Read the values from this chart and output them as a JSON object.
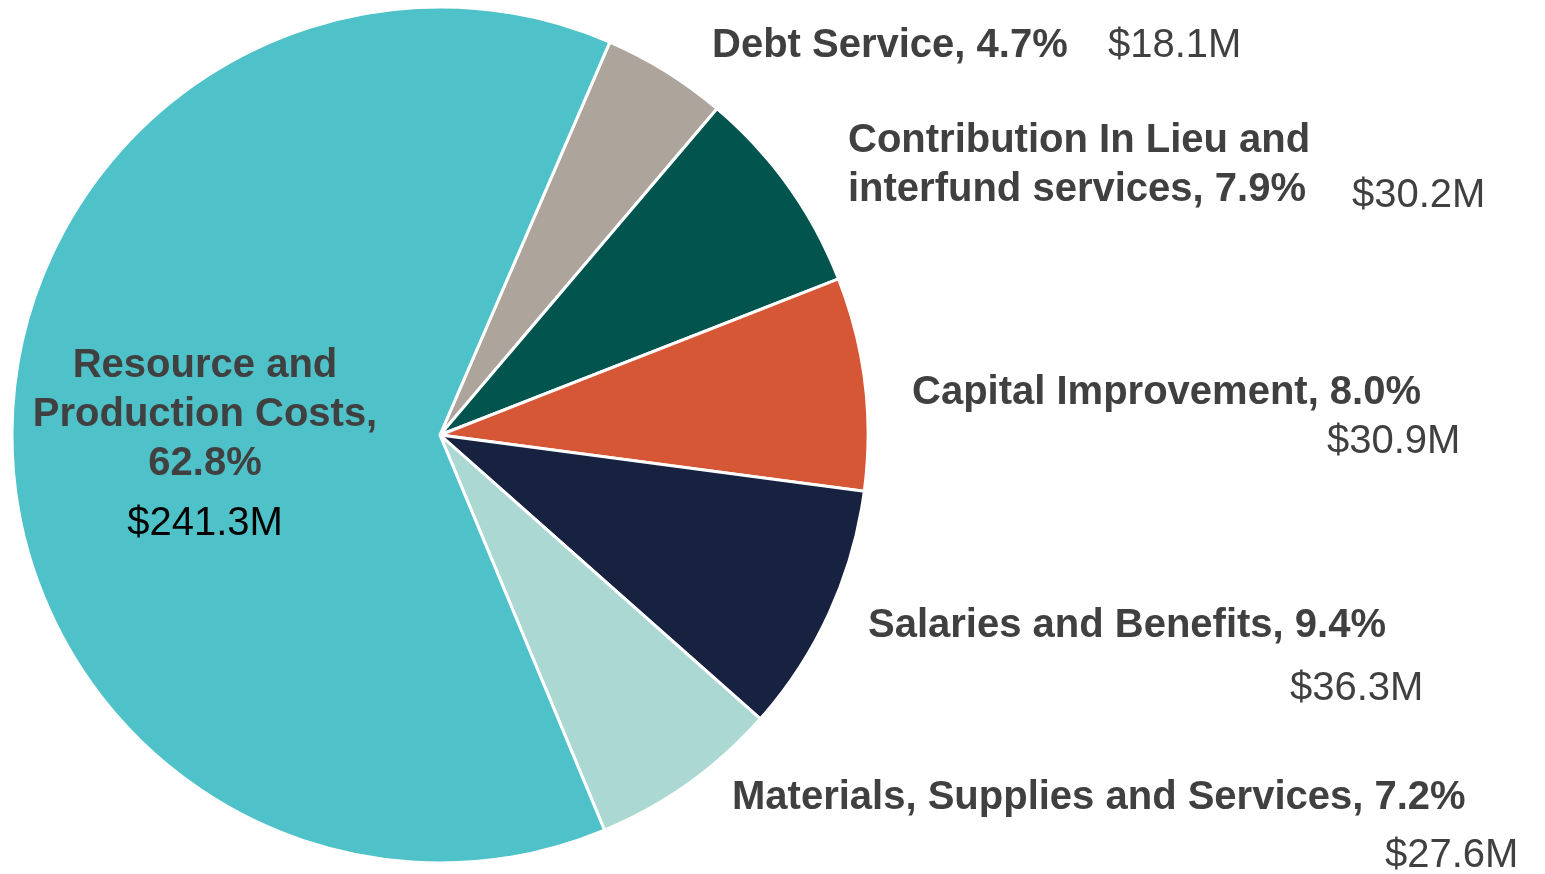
{
  "chart_data": {
    "type": "pie",
    "categories": [
      "Debt Service, 4.7%",
      "Contribution In Lieu and interfund services, 7.9%",
      "Capital Improvement, 8.0%",
      "Salaries and Benefits, 9.4%",
      "Materials, Supplies and Services, 7.2%",
      "Resource and Production Costs, 62.8%"
    ],
    "values": [
      18.1,
      30.2,
      30.9,
      36.3,
      27.6,
      241.3
    ],
    "colors": [
      "#ada59c",
      "#02544f",
      "#d65735",
      "#172240",
      "#abd8d2",
      "#4fc1c8"
    ],
    "value_labels": [
      "$18.1M",
      "$30.2M",
      "$30.9M",
      "$36.3M",
      "$27.6M",
      "$241.3M"
    ]
  }
}
